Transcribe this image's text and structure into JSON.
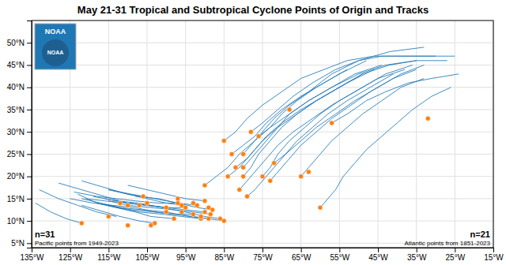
{
  "chart_data": {
    "type": "scatter",
    "title": "May 21-31 Tropical and Subtropical Cyclone Points of Origin and Tracks",
    "annotations": [
      "n=31",
      "Pacific points from 1949-2023",
      "n=21",
      "Atlantic points from 1851-2023",
      "NOAA",
      "NOAA"
    ],
    "xlim": [
      -135,
      -15
    ],
    "ylim": [
      4,
      55
    ],
    "xticks": [
      {
        "value": -135,
        "label": "135°W"
      },
      {
        "value": -125,
        "label": "125°W"
      },
      {
        "value": -115,
        "label": "115°W"
      },
      {
        "value": -105,
        "label": "105°W"
      },
      {
        "value": -95,
        "label": "95°W"
      },
      {
        "value": -85,
        "label": "85°W"
      },
      {
        "value": -75,
        "label": "75°W"
      },
      {
        "value": -65,
        "label": "65°W"
      },
      {
        "value": -55,
        "label": "55°W"
      },
      {
        "value": -45,
        "label": "45°W"
      },
      {
        "value": -35,
        "label": "35°W"
      },
      {
        "value": -25,
        "label": "25°W"
      },
      {
        "value": -15,
        "label": "15°W"
      }
    ],
    "yticks": [
      {
        "value": 5,
        "label": "5°N"
      },
      {
        "value": 10,
        "label": "10°N"
      },
      {
        "value": 15,
        "label": "15°N"
      },
      {
        "value": 20,
        "label": "20°N"
      },
      {
        "value": 25,
        "label": "25°N"
      },
      {
        "value": 30,
        "label": "30°N"
      },
      {
        "value": 35,
        "label": "35°N"
      },
      {
        "value": 40,
        "label": "40°N"
      },
      {
        "value": 45,
        "label": "45°N"
      },
      {
        "value": 50,
        "label": "50°N"
      }
    ],
    "grid": true,
    "series": [
      {
        "type": "line",
        "x": [
          -122,
          -126,
          -130,
          -134
        ],
        "values": [
          9.5,
          10.5,
          12,
          14
        ]
      },
      {
        "type": "line",
        "x": [
          -113,
          -118,
          -123,
          -128,
          -133
        ],
        "values": [
          11,
          12,
          13.5,
          15,
          17
        ]
      },
      {
        "type": "line",
        "x": [
          -100,
          -105,
          -110,
          -116,
          -122,
          -128
        ],
        "values": [
          13,
          13.5,
          14,
          15.5,
          17,
          18.5
        ]
      },
      {
        "type": "line",
        "x": [
          -97,
          -102,
          -108,
          -113,
          -118,
          -124
        ],
        "values": [
          14,
          14,
          14.5,
          15,
          15.5,
          16.5
        ]
      },
      {
        "type": "line",
        "x": [
          -95,
          -100,
          -105,
          -110,
          -116
        ],
        "values": [
          13,
          13,
          13.5,
          14,
          15
        ]
      },
      {
        "type": "line",
        "x": [
          -93,
          -98,
          -103,
          -108,
          -114,
          -119,
          -125
        ],
        "values": [
          11.5,
          11.5,
          12,
          13,
          13.5,
          14,
          15
        ]
      },
      {
        "type": "line",
        "x": [
          -91,
          -96,
          -101,
          -107,
          -113,
          -118
        ],
        "values": [
          10.5,
          11,
          11.5,
          12,
          13,
          14
        ]
      },
      {
        "type": "line",
        "x": [
          -90,
          -95,
          -100,
          -105,
          -110,
          -116,
          -121
        ],
        "values": [
          12,
          12.5,
          13,
          13.5,
          14,
          14.5,
          15
        ]
      },
      {
        "type": "line",
        "x": [
          -89,
          -94,
          -100,
          -106,
          -112,
          -117,
          -122
        ],
        "values": [
          10.5,
          11,
          12,
          12.5,
          13,
          14,
          15
        ]
      },
      {
        "type": "line",
        "x": [
          -88.5,
          -93,
          -98,
          -104,
          -110,
          -115
        ],
        "values": [
          11.5,
          12,
          12.5,
          13,
          13.5,
          14.5
        ]
      },
      {
        "type": "line",
        "x": [
          -103,
          -107,
          -112,
          -116,
          -122
        ],
        "values": [
          9.5,
          10,
          11,
          12,
          13.5
        ]
      },
      {
        "type": "line",
        "x": [
          -106,
          -110,
          -114,
          -118,
          -122
        ],
        "values": [
          15.5,
          16,
          17,
          18,
          19
        ]
      },
      {
        "type": "line",
        "x": [
          -98,
          -104,
          -108,
          -113,
          -118,
          -123
        ],
        "values": [
          10.5,
          11,
          12,
          13,
          14,
          16
        ]
      },
      {
        "type": "line",
        "x": [
          -96,
          -100,
          -105,
          -110,
          -115
        ],
        "values": [
          13.5,
          14,
          15,
          16,
          17
        ]
      },
      {
        "type": "line",
        "x": [
          -92,
          -97,
          -102,
          -108
        ],
        "values": [
          13.5,
          14,
          15,
          15.5
        ]
      },
      {
        "type": "line",
        "x": [
          -90,
          -95,
          -100,
          -105,
          -110
        ],
        "values": [
          14.5,
          15,
          16,
          17,
          18
        ]
      },
      {
        "type": "line",
        "x": [
          -88,
          -92,
          -97,
          -103,
          -109,
          -115
        ],
        "values": [
          12.5,
          13,
          14,
          15,
          16,
          17
        ]
      },
      {
        "type": "line",
        "x": [
          -86,
          -90,
          -95,
          -101,
          -107,
          -113,
          -119
        ],
        "values": [
          10.5,
          11,
          12,
          13,
          14,
          14.5,
          15.5
        ]
      },
      {
        "type": "line",
        "x": [
          -85,
          -89,
          -93,
          -98,
          -103,
          -109,
          -115
        ],
        "values": [
          10,
          10.5,
          11,
          11.5,
          12,
          12.5,
          13.5
        ]
      },
      {
        "type": "line",
        "x": [
          -80,
          -78,
          -75,
          -72,
          -68,
          -63,
          -57,
          -50,
          -42,
          -33
        ],
        "values": [
          25,
          27,
          30,
          33,
          36,
          39,
          43,
          46,
          48,
          49
        ]
      },
      {
        "type": "line",
        "x": [
          -76,
          -73,
          -70,
          -66,
          -61,
          -55,
          -48
        ],
        "values": [
          29,
          31,
          34,
          37,
          40,
          43,
          46
        ]
      },
      {
        "type": "line",
        "x": [
          -80,
          -78,
          -75,
          -72,
          -68,
          -63,
          -57,
          -50,
          -43,
          -35,
          -27
        ],
        "values": [
          22,
          24,
          27,
          30,
          34,
          37,
          40,
          43,
          45,
          46,
          46
        ]
      },
      {
        "type": "line",
        "x": [
          -75,
          -73,
          -71,
          -68,
          -64,
          -60,
          -55,
          -49,
          -43,
          -36
        ],
        "values": [
          20,
          22,
          25,
          28,
          31,
          34,
          37,
          40,
          43,
          45
        ]
      },
      {
        "type": "line",
        "x": [
          -82,
          -79,
          -77,
          -74,
          -70,
          -65,
          -59,
          -53,
          -46
        ],
        "values": [
          22,
          24,
          26,
          29,
          32,
          35,
          38,
          41,
          44
        ]
      },
      {
        "type": "line",
        "x": [
          -84,
          -81,
          -78,
          -75,
          -71,
          -66,
          -61,
          -55,
          -49,
          -42,
          -35
        ],
        "values": [
          20,
          22,
          25,
          28,
          31,
          34,
          37,
          40,
          43,
          45,
          46
        ]
      },
      {
        "type": "line",
        "x": [
          -73,
          -71,
          -68,
          -65,
          -61,
          -57,
          -52,
          -47,
          -41,
          -35
        ],
        "values": [
          19,
          21,
          24,
          27,
          30,
          33,
          36,
          39,
          42,
          44
        ]
      },
      {
        "type": "line",
        "x": [
          -65,
          -63,
          -60,
          -57,
          -53,
          -49,
          -44,
          -39,
          -33
        ],
        "values": [
          20,
          22,
          25,
          28,
          31,
          34,
          37,
          40,
          42
        ]
      },
      {
        "type": "line",
        "x": [
          -79,
          -77,
          -75,
          -72,
          -69,
          -65,
          -61,
          -56,
          -51,
          -45,
          -39,
          -33
        ],
        "values": [
          15.5,
          17,
          19,
          22,
          25,
          28,
          31,
          34,
          37,
          40,
          43,
          45
        ]
      },
      {
        "type": "line",
        "x": [
          -60,
          -58,
          -56,
          -54,
          -51,
          -48,
          -44,
          -40,
          -36,
          -31,
          -26
        ],
        "values": [
          13,
          15,
          17,
          20,
          23,
          26,
          29,
          32,
          35,
          38,
          40
        ]
      },
      {
        "type": "line",
        "x": [
          -80,
          -78,
          -76,
          -73,
          -70,
          -66,
          -61,
          -55,
          -49
        ],
        "values": [
          20,
          22,
          25,
          28,
          31,
          34,
          37,
          40,
          43
        ]
      },
      {
        "type": "line",
        "x": [
          -57,
          -53,
          -48,
          -43,
          -37,
          -31,
          -24
        ],
        "values": [
          32,
          34,
          37,
          39,
          41,
          42,
          43
        ]
      },
      {
        "type": "line",
        "x": [
          -72,
          -69,
          -66,
          -62,
          -58,
          -53,
          -47,
          -41
        ],
        "values": [
          23,
          25,
          28,
          31,
          34,
          37,
          40,
          43
        ]
      },
      {
        "type": "line",
        "x": [
          -81,
          -79,
          -77,
          -74,
          -71,
          -67,
          -62,
          -57,
          -51,
          -45,
          -38
        ],
        "values": [
          17,
          19,
          21,
          24,
          27,
          30,
          33,
          36,
          39,
          42,
          44
        ]
      },
      {
        "type": "line",
        "x": [
          -83,
          -80,
          -77,
          -74,
          -70,
          -65,
          -59,
          -53
        ],
        "values": [
          25,
          27,
          29,
          32,
          35,
          38,
          41,
          44
        ]
      },
      {
        "type": "line",
        "x": [
          -78,
          -75,
          -71,
          -67,
          -62,
          -56,
          -50,
          -44,
          -37,
          -30
        ],
        "values": [
          30,
          32,
          35,
          38,
          41,
          44,
          46,
          47,
          47,
          47
        ]
      },
      {
        "type": "line",
        "x": [
          -90,
          -87,
          -84,
          -81,
          -77,
          -73,
          -68,
          -63,
          -57,
          -51,
          -44
        ],
        "values": [
          18,
          20,
          22,
          25,
          28,
          31,
          34,
          37,
          40,
          43,
          45
        ]
      },
      {
        "type": "line",
        "x": [
          -85,
          -82,
          -79,
          -75,
          -70,
          -65,
          -59,
          -53,
          -46,
          -39,
          -32,
          -25
        ],
        "values": [
          28,
          30,
          33,
          36,
          39,
          42,
          44,
          46,
          47,
          47,
          47,
          47
        ]
      },
      {
        "type": "scatter",
        "marker": "circle",
        "x": [
          -122,
          -115,
          -110,
          -105,
          -100,
          -97,
          -95,
          -93,
          -91,
          -90,
          -89,
          -88.5,
          -103,
          -106,
          -98,
          -96,
          -92,
          -90,
          -88,
          -86,
          -85,
          -104,
          -96,
          -91,
          -89,
          -93,
          -100,
          -107,
          -112,
          -97,
          -110
        ],
        "values": [
          9.5,
          11,
          13.5,
          14,
          13,
          14,
          13,
          11.5,
          10.5,
          12,
          10.5,
          11.5,
          9.5,
          15.5,
          10.5,
          13.5,
          13.5,
          14.5,
          12.5,
          10.5,
          10,
          9,
          12,
          11,
          13,
          14,
          12,
          13.5,
          14,
          15,
          9
        ]
      },
      {
        "type": "scatter",
        "marker": "circle",
        "x": [
          -80,
          -76,
          -80,
          -75,
          -82,
          -84,
          -73,
          -65,
          -79,
          -60,
          -80,
          -57,
          -72,
          -81,
          -83,
          -78,
          -90,
          -85,
          -63,
          -68,
          -32
        ],
        "values": [
          25,
          29,
          22,
          20,
          22,
          20,
          19,
          20,
          15.5,
          13,
          20,
          32,
          23,
          17,
          25,
          30,
          18,
          28,
          21,
          35,
          33
        ]
      }
    ]
  }
}
